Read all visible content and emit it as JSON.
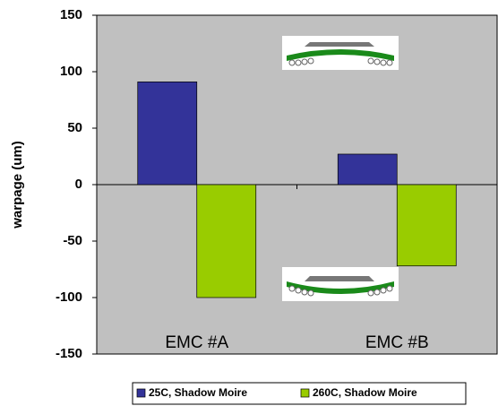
{
  "chart_data": {
    "type": "bar",
    "y_label": "warpage (um)",
    "categories": [
      "EMC #A",
      "EMC #B"
    ],
    "series": [
      {
        "name": "25C, Shadow Moire",
        "color": "#333399",
        "values": [
          91,
          27
        ]
      },
      {
        "name": "260C, Shadow Moire",
        "color": "#99cc00",
        "values": [
          -100,
          -72
        ]
      }
    ],
    "ylim": [
      -150,
      150
    ],
    "yticks": [
      -150,
      -100,
      -50,
      0,
      50,
      100,
      150
    ],
    "plot_background": "#c0c0c0",
    "legend": "bottom"
  }
}
